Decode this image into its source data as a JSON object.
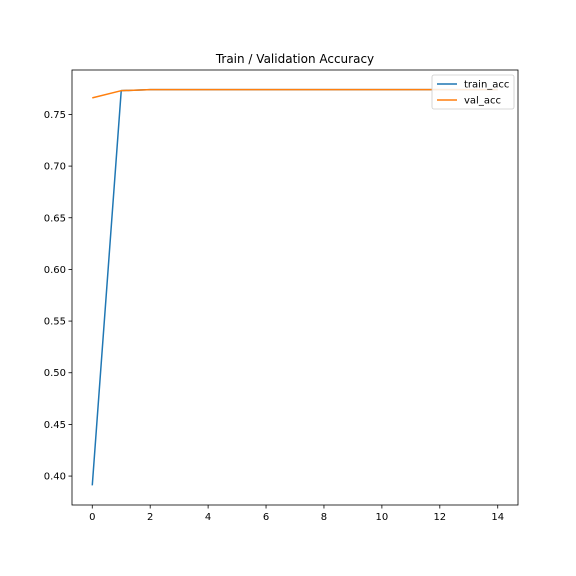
{
  "chart_data": {
    "type": "line",
    "title": "Train / Validation Accuracy",
    "xlabel": "",
    "ylabel": "",
    "x": [
      0,
      1,
      2,
      3,
      4,
      5,
      6,
      7,
      8,
      9,
      10,
      11,
      12,
      13,
      14
    ],
    "series": [
      {
        "name": "train_acc",
        "color": "#1f77b4",
        "values": [
          0.391,
          0.773,
          0.774,
          0.774,
          0.774,
          0.774,
          0.774,
          0.774,
          0.774,
          0.774,
          0.774,
          0.774,
          0.774,
          0.774,
          0.774
        ]
      },
      {
        "name": "val_acc",
        "color": "#ff7f0e",
        "values": [
          0.766,
          0.773,
          0.774,
          0.774,
          0.774,
          0.774,
          0.774,
          0.774,
          0.774,
          0.774,
          0.774,
          0.774,
          0.774,
          0.774,
          0.774
        ]
      }
    ],
    "xlim": [
      -0.7,
      14.7
    ],
    "ylim": [
      0.372,
      0.793
    ],
    "xticks": [
      0,
      2,
      4,
      6,
      8,
      10,
      12,
      14
    ],
    "yticks": [
      0.4,
      0.45,
      0.5,
      0.55,
      0.6,
      0.65,
      0.7,
      0.75
    ],
    "ytick_labels": [
      "0.40",
      "0.45",
      "0.50",
      "0.55",
      "0.60",
      "0.65",
      "0.70",
      "0.75"
    ],
    "grid": false,
    "legend_position": "top-right"
  }
}
